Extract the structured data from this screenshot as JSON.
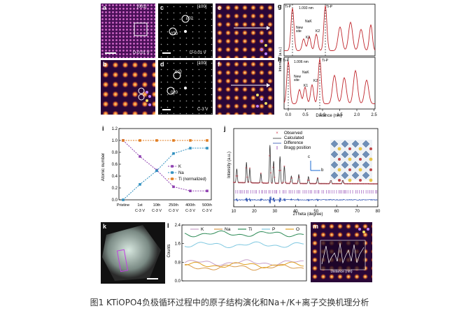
{
  "panels": {
    "a": {
      "letter": "a",
      "zone": "[001]",
      "voltage": "D-0.01 V"
    },
    "b": {
      "letter": "b"
    },
    "c": {
      "letter": "c",
      "zone": "[100]",
      "spot1": "002",
      "spot2": "020",
      "voltage": "D-0.01 V"
    },
    "d": {
      "letter": "d",
      "zone": "[100]",
      "spot1": "002",
      "spot2": "020",
      "voltage": "C-3 V"
    },
    "e": {
      "letter": "e"
    },
    "f": {
      "letter": "f"
    },
    "g": {
      "letter": "g",
      "left_tag": "Ti-P",
      "right_tag": "Ti-P",
      "distance": "1.093 nm",
      "labels": [
        "NaK",
        "New site",
        "K1",
        "K2"
      ]
    },
    "h": {
      "letter": "h",
      "left_tag": "Ti-P",
      "right_tag": "Ti-P",
      "distance": "1.006 nm",
      "labels": [
        "NaK",
        "New site",
        "K1",
        "K2"
      ]
    },
    "i": {
      "letter": "i"
    },
    "j": {
      "letter": "j"
    },
    "k": {
      "letter": "k"
    },
    "l": {
      "letter": "l"
    },
    "m": {
      "letter": "m"
    }
  },
  "gh_axes": {
    "ylabel": "Intensity (a.u.)",
    "xlabel": "Distance (nm)",
    "xticks": [
      "0.0",
      "0.5",
      "1.0",
      "1.5",
      "2.0",
      "2.5"
    ]
  },
  "chart_data": [
    {
      "type": "line",
      "panel": "i",
      "ylabel": "Atomic number",
      "categories": [
        "Pristine",
        "1st C-3 V",
        "10th C-3 V",
        "250th C-3 V",
        "400th C-3 V",
        "500th C-3 V"
      ],
      "category_lines": [
        [
          "Pristine",
          ""
        ],
        [
          "1st",
          "C-3 V"
        ],
        [
          "10th",
          "C-3 V"
        ],
        [
          "250th",
          "C-3 V"
        ],
        [
          "400th",
          "C-3 V"
        ],
        [
          "500th",
          "C-3 V"
        ]
      ],
      "ylim": [
        0,
        1.2
      ],
      "yticks": [
        "0.0",
        "0.2",
        "0.4",
        "0.6",
        "0.8",
        "1.0",
        "1.2"
      ],
      "series": [
        {
          "name": "K",
          "color": "#8e3fb0",
          "values": [
            1.0,
            0.73,
            0.5,
            0.22,
            0.15,
            0.15
          ]
        },
        {
          "name": "Na",
          "color": "#2f8fbf",
          "values": [
            0.0,
            0.26,
            0.49,
            0.78,
            0.87,
            0.87
          ]
        },
        {
          "name": "Ti (normalized)",
          "color": "#e07b1f",
          "values": [
            1.0,
            1.0,
            1.0,
            1.0,
            1.0,
            1.0
          ]
        }
      ],
      "legend": "middle-right"
    },
    {
      "type": "line",
      "panel": "j",
      "ylabel": "Intensity (a.u.)",
      "xlabel": "2Theta (degree)",
      "xlim": [
        10,
        80
      ],
      "xticks": [
        "10",
        "20",
        "30",
        "40",
        "50",
        "60",
        "70",
        "80"
      ],
      "legend_entries": [
        "Observed",
        "Calculated",
        "Difference",
        "Bragg position"
      ],
      "peaks": [
        {
          "x": 11.5,
          "h": 0.28
        },
        {
          "x": 16.2,
          "h": 0.42
        },
        {
          "x": 17.8,
          "h": 0.3
        },
        {
          "x": 23.2,
          "h": 0.2
        },
        {
          "x": 27.6,
          "h": 0.78
        },
        {
          "x": 29.4,
          "h": 0.45
        },
        {
          "x": 32.5,
          "h": 0.55
        },
        {
          "x": 34.6,
          "h": 0.35
        },
        {
          "x": 38.0,
          "h": 0.15
        },
        {
          "x": 41.6,
          "h": 0.18
        },
        {
          "x": 46.3,
          "h": 0.14
        },
        {
          "x": 50.7,
          "h": 0.12
        },
        {
          "x": 57.2,
          "h": 0.1
        },
        {
          "x": 63.0,
          "h": 0.08
        }
      ],
      "axis_labels": [
        "c",
        "b"
      ]
    },
    {
      "type": "line",
      "panel": "l",
      "ylabel": "Counts",
      "ylim": [
        0,
        2.4
      ],
      "yticks": [
        "0.0",
        "0.8",
        "1.6",
        "2.4"
      ],
      "series": [
        {
          "name": "K",
          "color": "#c8a0c8",
          "level": 0.78
        },
        {
          "name": "Na",
          "color": "#d99a4a",
          "level": 0.58
        },
        {
          "name": "Ti",
          "color": "#2e8b57",
          "level": 2.02
        },
        {
          "name": "P",
          "color": "#7fc8e0",
          "level": 1.55
        },
        {
          "name": "O",
          "color": "#e0a020",
          "level": 0.68
        }
      ]
    }
  ],
  "m_inset": {
    "xlabel": "Distance (nm)"
  },
  "caption": {
    "text": "图1   KTiOPO4负极循环过程中的原子结构演化和Na+/K+离子交换机理分析"
  }
}
